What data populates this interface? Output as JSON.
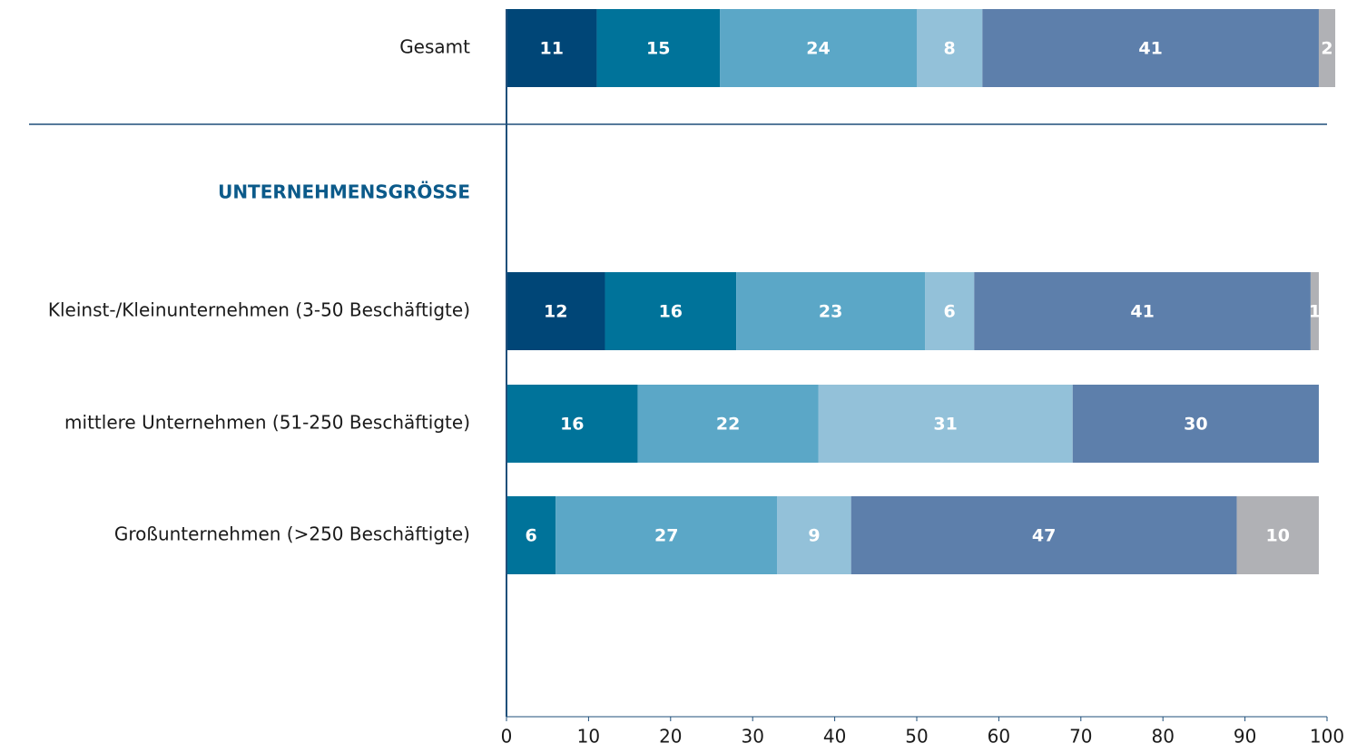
{
  "chart_data": {
    "type": "stacked_bar_horizontal",
    "categories": [
      "Gesamt",
      "Kleinst-/Kleinunternehmen (3-50 Beschäftigte)",
      "mittlere Unternehmen (51-250 Beschäftigte)",
      "Großunternehmen (>250 Beschäftigte)"
    ],
    "group_label": "UNTERNEHMENSGRÖSSE",
    "series": [
      {
        "color": "#004677",
        "values": [
          11,
          12,
          null,
          null
        ]
      },
      {
        "color": "#00739a",
        "values": [
          15,
          16,
          16,
          6
        ]
      },
      {
        "color": "#5ba7c7",
        "values": [
          24,
          23,
          22,
          27
        ]
      },
      {
        "color": "#93c1d9",
        "values": [
          8,
          6,
          31,
          9
        ]
      },
      {
        "color": "#5d7fab",
        "values": [
          41,
          41,
          30,
          47
        ]
      },
      {
        "color": "#b0b1b5",
        "values": [
          2,
          1,
          null,
          10
        ]
      }
    ],
    "xlim": [
      0,
      100
    ],
    "xticks": [
      0,
      10,
      20,
      30,
      40,
      50,
      60,
      70,
      80,
      90,
      100
    ]
  }
}
